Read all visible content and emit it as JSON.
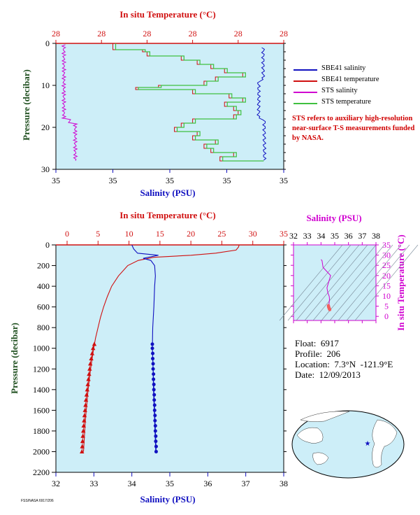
{
  "chart_data": [
    {
      "type": "line",
      "id": "top-profile",
      "top_axis_label": "In situ Temperature (°C)",
      "top_ticks": [
        "28",
        "28",
        "28",
        "28",
        "28",
        "28"
      ],
      "bottom_axis_label": "Salinity (PSU)",
      "bottom_ticks": [
        "35",
        "35",
        "35",
        "35",
        "35"
      ],
      "ylabel": "Pressure (decibar)",
      "y_ticks": [
        "0",
        "10",
        "20",
        "30"
      ],
      "ylim": [
        0,
        30
      ],
      "series": [
        {
          "name": "SBE41 salinity",
          "color": "#1010c0"
        },
        {
          "name": "SBE41 temperature",
          "color": "#d01010"
        },
        {
          "name": "STS salinity",
          "color": "#d000d0"
        },
        {
          "name": "STS temperature",
          "color": "#40c040"
        }
      ]
    },
    {
      "type": "line",
      "id": "main-profile",
      "top_axis_label": "In situ Temperature (°C)",
      "top_ticks": [
        "0",
        "5",
        "10",
        "15",
        "20",
        "25",
        "30",
        "35"
      ],
      "bottom_axis_label": "Salinity (PSU)",
      "bottom_ticks": [
        "32",
        "33",
        "34",
        "35",
        "36",
        "37",
        "38"
      ],
      "ylabel": "Pressure (decibar)",
      "y_ticks": [
        "0",
        "200",
        "400",
        "600",
        "800",
        "1000",
        "1200",
        "1400",
        "1600",
        "1800",
        "2000",
        "2200"
      ],
      "ylim": [
        0,
        2200
      ],
      "temperature": {
        "pressure": [
          0,
          20,
          50,
          80,
          100,
          120,
          150,
          200,
          300,
          400,
          500,
          600,
          700,
          800,
          900,
          1000,
          1100,
          1200,
          1300,
          1400,
          1500,
          1600,
          1700,
          1800,
          1900,
          2000
        ],
        "values": [
          27.8,
          27.7,
          27.3,
          24.0,
          20.0,
          14.0,
          11.5,
          9.8,
          8.3,
          7.2,
          6.5,
          5.9,
          5.4,
          5.0,
          4.6,
          4.3,
          4.05,
          3.8,
          3.6,
          3.4,
          3.25,
          3.1,
          2.95,
          2.85,
          2.75,
          2.65
        ]
      },
      "salinity": {
        "pressure": [
          0,
          40,
          60,
          80,
          100,
          130,
          150,
          200,
          300,
          400,
          600,
          800,
          1000,
          1200,
          1400,
          1600,
          1800,
          2000
        ],
        "values": [
          34.0,
          34.05,
          34.1,
          34.15,
          34.7,
          34.3,
          34.5,
          34.6,
          34.62,
          34.6,
          34.58,
          34.55,
          34.54,
          34.56,
          34.57,
          34.59,
          34.61,
          34.63
        ]
      },
      "deep_temperature_markers": [
        [
          960,
          5.3
        ],
        [
          1000,
          5.1
        ],
        [
          1050,
          4.95
        ],
        [
          1100,
          4.8
        ],
        [
          1150,
          4.65
        ],
        [
          1200,
          4.55
        ],
        [
          1250,
          4.45
        ],
        [
          1300,
          4.35
        ],
        [
          1350,
          4.25
        ],
        [
          1400,
          4.15
        ],
        [
          1450,
          4.05
        ],
        [
          1500,
          3.95
        ],
        [
          1550,
          3.88
        ],
        [
          1600,
          3.8
        ],
        [
          1650,
          3.72
        ],
        [
          1700,
          3.65
        ],
        [
          1750,
          3.58
        ],
        [
          1800,
          3.52
        ],
        [
          1850,
          3.45
        ],
        [
          1900,
          3.4
        ],
        [
          1950,
          3.35
        ],
        [
          2000,
          3.3
        ]
      ],
      "deep_salinity_markers": [
        [
          960,
          34.54
        ],
        [
          1000,
          34.54
        ],
        [
          1050,
          34.55
        ],
        [
          1100,
          34.55
        ],
        [
          1150,
          34.56
        ],
        [
          1200,
          34.56
        ],
        [
          1250,
          34.57
        ],
        [
          1300,
          34.57
        ],
        [
          1350,
          34.58
        ],
        [
          1400,
          34.58
        ],
        [
          1450,
          34.59
        ],
        [
          1500,
          34.59
        ],
        [
          1550,
          34.6
        ],
        [
          1600,
          34.6
        ],
        [
          1650,
          34.61
        ],
        [
          1700,
          34.61
        ],
        [
          1750,
          34.62
        ],
        [
          1800,
          34.62
        ],
        [
          1850,
          34.63
        ],
        [
          1900,
          34.63
        ],
        [
          1950,
          34.64
        ],
        [
          2000,
          34.64
        ]
      ]
    },
    {
      "type": "scatter",
      "id": "ts-diagram",
      "top_axis_label": "Salinity (PSU)",
      "top_ticks": [
        "32",
        "33",
        "34",
        "35",
        "36",
        "37",
        "38"
      ],
      "right_axis_label": "In situ Temperature (°C)",
      "right_ticks": [
        "0",
        "5",
        "10",
        "15",
        "20",
        "25",
        "30",
        "35"
      ],
      "xlim": [
        32,
        38
      ],
      "ylim": [
        -2,
        35
      ]
    }
  ],
  "info": {
    "float": "Float:  6917",
    "profile": "Profile:  206",
    "location": "Location:  7.3°N  -121.9°E",
    "date": "Date:  12/09/2013"
  },
  "legend": [
    {
      "label": "SBE41 salinity",
      "color": "#1010c0"
    },
    {
      "label": "SBE41 temperature",
      "color": "#d01010"
    },
    {
      "label": "STS salinity",
      "color": "#d000d0"
    },
    {
      "label": "STS temperature",
      "color": "#40c040"
    }
  ],
  "note": "STS refers to auxiliary high-resolution near-surface T-S measurements funded by NASA.",
  "footer": "FSS/NASA 6917/206",
  "colors": {
    "plot_bg": "#cdeef8",
    "temperature": "#d01010",
    "salinity": "#1010c0",
    "axis_temp": "#d01010",
    "axis_sal": "#1010c0",
    "axis_ts": "#d000d0",
    "pressure_label": "#205020"
  }
}
